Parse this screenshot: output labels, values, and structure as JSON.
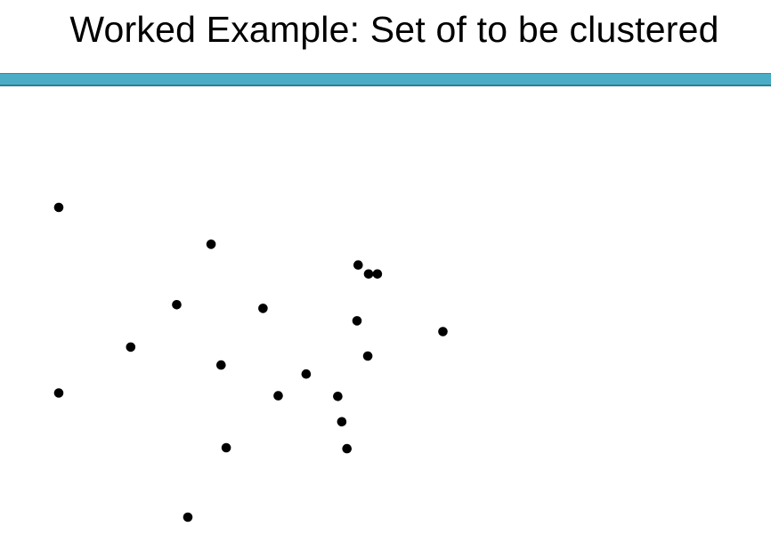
{
  "slide": {
    "title": "Worked Example: Set of to be clustered",
    "accent_color": "#4bacc6",
    "point_color": "#000000"
  },
  "chart_data": {
    "type": "scatter",
    "title": "Worked Example: Set of to be clustered",
    "xlabel": "",
    "ylabel": "",
    "xlim": [
      0,
      100
    ],
    "ylim": [
      0,
      100
    ],
    "grid": false,
    "axes_visible": false,
    "series": [
      {
        "points": [
          {
            "x": 0.0,
            "y": 100.0
          },
          {
            "x": 38.1,
            "y": 88.1
          },
          {
            "x": 74.9,
            "y": 81.4
          },
          {
            "x": 77.5,
            "y": 78.5
          },
          {
            "x": 79.7,
            "y": 78.5
          },
          {
            "x": 29.5,
            "y": 68.6
          },
          {
            "x": 51.1,
            "y": 67.4
          },
          {
            "x": 74.6,
            "y": 63.4
          },
          {
            "x": 96.1,
            "y": 59.9
          },
          {
            "x": 18.0,
            "y": 54.9
          },
          {
            "x": 77.3,
            "y": 52.0
          },
          {
            "x": 40.6,
            "y": 49.1
          },
          {
            "x": 61.9,
            "y": 46.2
          },
          {
            "x": 0.0,
            "y": 40.1
          },
          {
            "x": 54.9,
            "y": 39.2
          },
          {
            "x": 69.8,
            "y": 39.0
          },
          {
            "x": 70.8,
            "y": 30.8
          },
          {
            "x": 41.9,
            "y": 22.4
          },
          {
            "x": 72.1,
            "y": 22.1
          },
          {
            "x": 32.3,
            "y": 0.0
          }
        ]
      }
    ]
  }
}
